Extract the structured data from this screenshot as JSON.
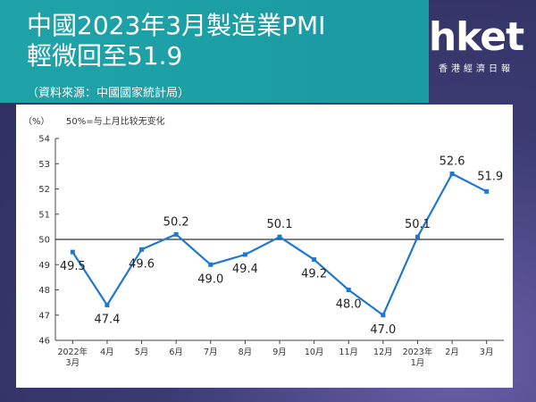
{
  "header": {
    "title_line1": "中國2023年3月製造業PMI",
    "title_line2": "輕微回至51.9",
    "source": "（資料來源：中國國家統計局）"
  },
  "logo": {
    "mark": "hket",
    "sub": "香港經濟日報"
  },
  "colors": {
    "header_bg": "#1fa3a9",
    "line": "#1f77d0",
    "reference_line": "#333333"
  },
  "chart_data": {
    "type": "line",
    "title": "",
    "unit_label": "（%）",
    "note": "50%=与上月比较无变化",
    "ylim": [
      46,
      54
    ],
    "yticks": [
      46,
      47,
      48,
      49,
      50,
      51,
      52,
      53,
      54
    ],
    "reference_line": 50,
    "grid": false,
    "categories": [
      "2022年\n3月",
      "4月",
      "5月",
      "6月",
      "7月",
      "8月",
      "9月",
      "10月",
      "11月",
      "12月",
      "2023年\n1月",
      "2月",
      "3月"
    ],
    "series": [
      {
        "values": [
          49.5,
          47.4,
          49.6,
          50.2,
          49.0,
          49.4,
          50.1,
          49.2,
          48.0,
          47.0,
          50.1,
          52.6,
          51.9
        ]
      }
    ],
    "labels": [
      "49.5",
      "47.4",
      "49.6",
      "50.2",
      "49.0",
      "49.4",
      "50.1",
      "49.2",
      "48.0",
      "47.0",
      "50.1",
      "52.6",
      "51.9"
    ]
  }
}
